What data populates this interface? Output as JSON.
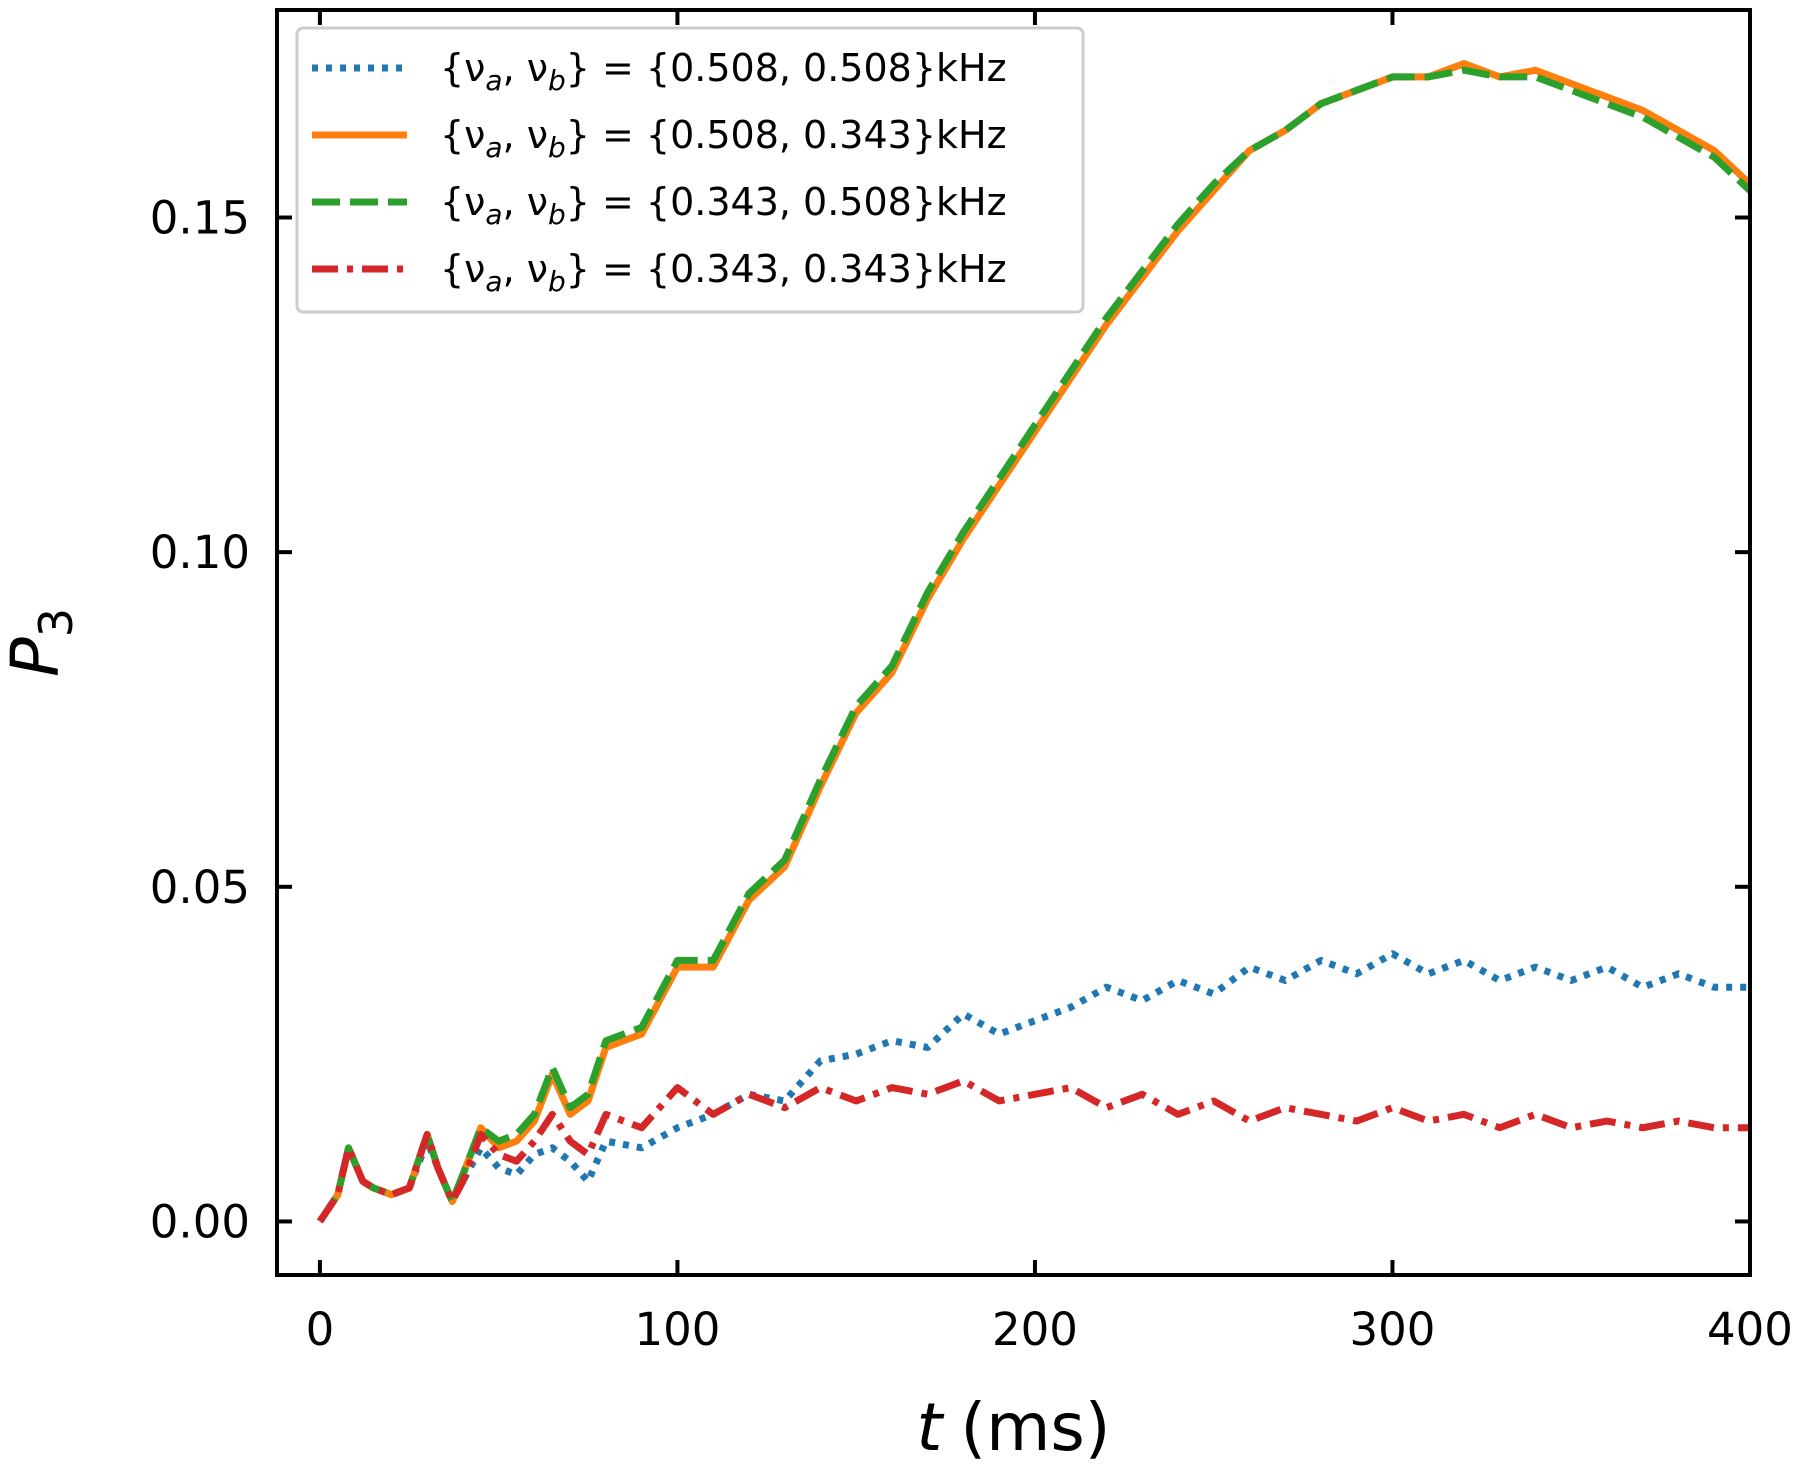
{
  "chart_data": {
    "type": "line",
    "title": "",
    "xlabel_var": "t",
    "xlabel_unit": "(ms)",
    "ylabel_var": "P",
    "ylabel_sub": "3",
    "xlim": [
      -12,
      400
    ],
    "ylim": [
      -0.008,
      0.181
    ],
    "xticks": [
      0,
      100,
      200,
      300,
      400
    ],
    "xtick_labels": [
      "0",
      "100",
      "200",
      "300",
      "400"
    ],
    "yticks": [
      0.0,
      0.05,
      0.1,
      0.15
    ],
    "ytick_labels": [
      "0.00",
      "0.05",
      "0.10",
      "0.15"
    ],
    "grid": false,
    "legend_position": "top-left",
    "series": [
      {
        "name": "{νa, νb} = {0.508, 0.508}kHz",
        "legend": {
          "prefix": "{ν",
          "s1": "a",
          "mid": ", ν",
          "s2": "b",
          "suffix": "} = {0.508, 0.508}kHz"
        },
        "color": "#1f77b4",
        "style": "dotted",
        "x": [
          0,
          5,
          8,
          12,
          15,
          20,
          25,
          30,
          33,
          37,
          40,
          45,
          50,
          55,
          60,
          65,
          70,
          75,
          80,
          90,
          100,
          110,
          120,
          130,
          140,
          150,
          160,
          170,
          180,
          190,
          200,
          210,
          220,
          230,
          240,
          250,
          260,
          270,
          280,
          290,
          300,
          310,
          320,
          330,
          340,
          350,
          360,
          370,
          380,
          390,
          400
        ],
        "y": [
          0.0,
          0.004,
          0.011,
          0.006,
          0.005,
          0.004,
          0.005,
          0.012,
          0.008,
          0.003,
          0.006,
          0.011,
          0.008,
          0.007,
          0.01,
          0.011,
          0.009,
          0.006,
          0.012,
          0.011,
          0.014,
          0.016,
          0.019,
          0.018,
          0.024,
          0.025,
          0.027,
          0.026,
          0.031,
          0.028,
          0.03,
          0.032,
          0.035,
          0.033,
          0.036,
          0.034,
          0.038,
          0.036,
          0.039,
          0.037,
          0.04,
          0.037,
          0.039,
          0.036,
          0.038,
          0.036,
          0.038,
          0.035,
          0.037,
          0.035,
          0.035
        ]
      },
      {
        "name": "{νa, νb} = {0.508, 0.343}kHz",
        "legend": {
          "prefix": "{ν",
          "s1": "a",
          "mid": ", ν",
          "s2": "b",
          "suffix": "} = {0.508, 0.343}kHz"
        },
        "color": "#ff7f0e",
        "style": "solid",
        "x": [
          0,
          5,
          8,
          12,
          15,
          20,
          25,
          30,
          33,
          37,
          40,
          45,
          50,
          55,
          60,
          65,
          70,
          75,
          80,
          90,
          100,
          110,
          120,
          130,
          140,
          150,
          160,
          170,
          180,
          190,
          200,
          210,
          220,
          230,
          240,
          250,
          260,
          270,
          280,
          290,
          300,
          310,
          320,
          330,
          340,
          350,
          360,
          370,
          380,
          390,
          400
        ],
        "y": [
          0.0,
          0.004,
          0.011,
          0.006,
          0.005,
          0.004,
          0.005,
          0.013,
          0.008,
          0.003,
          0.007,
          0.014,
          0.011,
          0.012,
          0.015,
          0.022,
          0.016,
          0.018,
          0.026,
          0.028,
          0.038,
          0.038,
          0.048,
          0.053,
          0.065,
          0.076,
          0.082,
          0.093,
          0.102,
          0.11,
          0.118,
          0.126,
          0.134,
          0.141,
          0.148,
          0.154,
          0.16,
          0.163,
          0.167,
          0.169,
          0.171,
          0.171,
          0.173,
          0.171,
          0.172,
          0.17,
          0.168,
          0.166,
          0.163,
          0.16,
          0.155
        ]
      },
      {
        "name": "{νa, νb} = {0.343, 0.508}kHz",
        "legend": {
          "prefix": "{ν",
          "s1": "a",
          "mid": ", ν",
          "s2": "b",
          "suffix": "} = {0.343, 0.508}kHz"
        },
        "color": "#2ca02c",
        "style": "dashed",
        "x": [
          0,
          5,
          8,
          12,
          15,
          20,
          25,
          30,
          33,
          37,
          40,
          45,
          50,
          55,
          60,
          65,
          70,
          75,
          80,
          90,
          100,
          110,
          120,
          130,
          140,
          150,
          160,
          170,
          180,
          190,
          200,
          210,
          220,
          230,
          240,
          250,
          260,
          270,
          280,
          290,
          300,
          310,
          320,
          330,
          340,
          350,
          360,
          370,
          380,
          390,
          400
        ],
        "y": [
          0.0,
          0.004,
          0.011,
          0.006,
          0.005,
          0.004,
          0.005,
          0.013,
          0.008,
          0.003,
          0.007,
          0.014,
          0.012,
          0.013,
          0.016,
          0.023,
          0.017,
          0.019,
          0.027,
          0.029,
          0.039,
          0.039,
          0.049,
          0.054,
          0.066,
          0.077,
          0.083,
          0.094,
          0.103,
          0.111,
          0.119,
          0.127,
          0.135,
          0.142,
          0.149,
          0.155,
          0.16,
          0.163,
          0.167,
          0.169,
          0.171,
          0.171,
          0.172,
          0.171,
          0.171,
          0.169,
          0.167,
          0.165,
          0.162,
          0.159,
          0.154
        ]
      },
      {
        "name": "{νa, νb} = {0.343, 0.343}kHz",
        "legend": {
          "prefix": "{ν",
          "s1": "a",
          "mid": ", ν",
          "s2": "b",
          "suffix": "} = {0.343, 0.343}kHz"
        },
        "color": "#d62728",
        "style": "dashdot",
        "x": [
          0,
          5,
          8,
          12,
          15,
          20,
          25,
          30,
          33,
          37,
          40,
          45,
          50,
          55,
          60,
          65,
          70,
          75,
          80,
          90,
          100,
          110,
          120,
          130,
          140,
          150,
          160,
          170,
          180,
          190,
          200,
          210,
          220,
          230,
          240,
          250,
          260,
          270,
          280,
          290,
          300,
          310,
          320,
          330,
          340,
          350,
          360,
          370,
          380,
          390,
          400
        ],
        "y": [
          0.0,
          0.004,
          0.011,
          0.006,
          0.005,
          0.004,
          0.005,
          0.013,
          0.008,
          0.003,
          0.006,
          0.013,
          0.01,
          0.009,
          0.012,
          0.016,
          0.012,
          0.01,
          0.016,
          0.014,
          0.02,
          0.016,
          0.019,
          0.017,
          0.02,
          0.018,
          0.02,
          0.019,
          0.021,
          0.018,
          0.019,
          0.02,
          0.017,
          0.019,
          0.016,
          0.018,
          0.015,
          0.017,
          0.016,
          0.015,
          0.017,
          0.015,
          0.016,
          0.014,
          0.016,
          0.014,
          0.015,
          0.014,
          0.015,
          0.014,
          0.014
        ]
      }
    ]
  }
}
